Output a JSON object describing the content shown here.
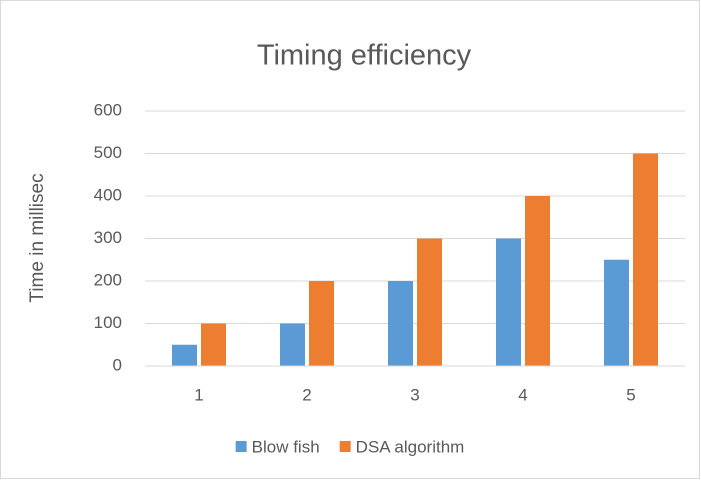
{
  "chart_data": {
    "type": "bar",
    "title": "Timing efficiency",
    "ylabel": "Time in millisec",
    "categories": [
      "1",
      "2",
      "3",
      "4",
      "5"
    ],
    "series": [
      {
        "name": "Blow fish",
        "color": "#5b9bd5",
        "values": [
          50,
          100,
          200,
          300,
          250
        ]
      },
      {
        "name": "DSA algorithm",
        "color": "#ed7d31",
        "values": [
          100,
          200,
          300,
          400,
          500
        ]
      }
    ],
    "ylim": [
      0,
      600
    ],
    "yticks": [
      0,
      100,
      200,
      300,
      400,
      500,
      600
    ],
    "grid": true,
    "legend": "bottom"
  }
}
